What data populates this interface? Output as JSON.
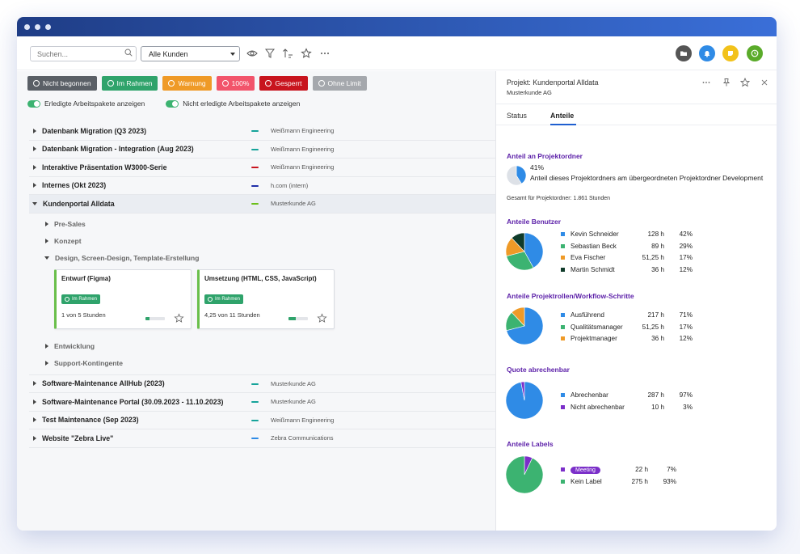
{
  "toolbar": {
    "search_placeholder": "Suchen...",
    "customer_select": "Alle Kunden",
    "round_buttons": [
      {
        "icon": "folder-icon",
        "color": "#555555"
      },
      {
        "icon": "bell-icon",
        "color": "#2f8be6"
      },
      {
        "icon": "note-icon",
        "color": "#f2c21b"
      },
      {
        "icon": "clock-icon",
        "color": "#5aab2a"
      }
    ]
  },
  "filters": [
    {
      "label": "Nicht begonnen",
      "color": "#5a5f66"
    },
    {
      "label": "Im Rahmen",
      "color": "#2fa36b"
    },
    {
      "label": "Warnung",
      "color": "#ef9a27"
    },
    {
      "label": "100%",
      "color": "#f2546b"
    },
    {
      "label": "Gesperrt",
      "color": "#c8141e"
    },
    {
      "label": "Ohne Limit",
      "color": "#a5a8ad"
    }
  ],
  "toggles": {
    "done": "Erledigte Arbeitspakete anzeigen",
    "not_done": "Nicht erledigte Arbeitspakete anzeigen"
  },
  "projects_top": [
    {
      "name": "Datenbank Migration (Q3 2023)",
      "client": "Weißmann Engineering",
      "color": "#16a39a"
    },
    {
      "name": "Datenbank Migration - Integration (Aug 2023)",
      "client": "Weißmann Engineering",
      "color": "#16a39a"
    },
    {
      "name": "Interaktive Präsentation W3000-Serie",
      "client": "Weißmann Engineering",
      "color": "#c8141e"
    },
    {
      "name": "Internes (Okt 2023)",
      "client": "h.com (intern)",
      "color": "#1e2ea8"
    },
    {
      "name": "Kundenportal Alldata",
      "client": "Musterkunde AG",
      "color": "#6abf1a"
    }
  ],
  "subfolders_top": [
    "Pre-Sales",
    "Konzept",
    "Design, Screen-Design, Template-Erstellung"
  ],
  "cards": [
    {
      "title": "Entwurf (Figma)",
      "badge": "Im Rahmen",
      "hours": "1 von 5 Stunden",
      "progress": 0.2
    },
    {
      "title": "Umsetzung (HTML, CSS, JavaScript)",
      "badge": "Im Rahmen",
      "hours": "4,25 von 11 Stunden",
      "progress": 0.39
    }
  ],
  "subfolders_bottom": [
    "Entwicklung",
    "Support-Kontingente"
  ],
  "projects_bottom": [
    {
      "name": "Software-Maintenance AllHub (2023)",
      "client": "Musterkunde AG",
      "color": "#16a39a"
    },
    {
      "name": "Software-Maintenance Portal (30.09.2023 - 11.10.2023)",
      "client": "Musterkunde AG",
      "color": "#16a39a"
    },
    {
      "name": "Test Maintenance (Sep 2023)",
      "client": "Weißmann Engineering",
      "color": "#16a39a"
    },
    {
      "name": "Website \"Zebra Live\"",
      "client": "Zebra Communications",
      "color": "#2f8be6"
    }
  ],
  "panel": {
    "title": "Projekt: Kundenportal Alldata",
    "subtitle": "Musterkunde AG",
    "tabs": [
      "Status",
      "Anteile"
    ],
    "share": {
      "title": "Anteil an Projektordner",
      "percent": "41%",
      "percent_value": 41,
      "description": "Anteil dieses Projektordners am übergeordneten Projektordner Development",
      "total": "Gesamt für Projektordner: 1.861 Stunden"
    },
    "users": {
      "title": "Anteile Benutzer",
      "items": [
        {
          "name": "Kevin Schneider",
          "hours": "128 h",
          "pct": "42%",
          "value": 42,
          "color": "#2f8be6"
        },
        {
          "name": "Sebastian Beck",
          "hours": "89 h",
          "pct": "29%",
          "value": 29,
          "color": "#3cb371"
        },
        {
          "name": "Eva Fischer",
          "hours": "51,25 h",
          "pct": "17%",
          "value": 17,
          "color": "#ef9a27"
        },
        {
          "name": "Martin Schmidt",
          "hours": "36 h",
          "pct": "12%",
          "value": 12,
          "color": "#0f3b2a"
        }
      ]
    },
    "roles": {
      "title": "Anteile Projektrollen/Workflow-Schritte",
      "items": [
        {
          "name": "Ausführend",
          "hours": "217 h",
          "pct": "71%",
          "value": 71,
          "color": "#2f8be6"
        },
        {
          "name": "Qualitätsmanager",
          "hours": "51,25 h",
          "pct": "17%",
          "value": 17,
          "color": "#3cb371"
        },
        {
          "name": "Projektmanager",
          "hours": "36 h",
          "pct": "12%",
          "value": 12,
          "color": "#ef9a27"
        }
      ]
    },
    "billable": {
      "title": "Quote abrechenbar",
      "items": [
        {
          "name": "Abrechenbar",
          "hours": "287 h",
          "pct": "97%",
          "value": 97,
          "color": "#2f8be6"
        },
        {
          "name": "Nicht abrechenbar",
          "hours": "10 h",
          "pct": "3%",
          "value": 3,
          "color": "#7b2fc9"
        }
      ]
    },
    "labels": {
      "title": "Anteile Labels",
      "items": [
        {
          "name": "Meeting",
          "hours": "22 h",
          "pct": "7%",
          "value": 7,
          "color": "#7b2fc9",
          "badge": true
        },
        {
          "name": "Kein Label",
          "hours": "275 h",
          "pct": "93%",
          "value": 93,
          "color": "#3cb371"
        }
      ]
    }
  }
}
